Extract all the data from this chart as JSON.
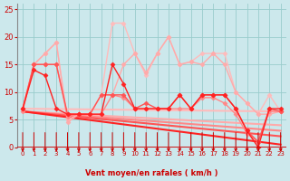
{
  "xlim": [
    -0.5,
    23.5
  ],
  "ylim": [
    0,
    26
  ],
  "yticks": [
    0,
    5,
    10,
    15,
    20,
    25
  ],
  "xticks": [
    0,
    1,
    2,
    3,
    4,
    5,
    6,
    7,
    8,
    9,
    10,
    11,
    12,
    13,
    14,
    15,
    16,
    17,
    18,
    19,
    20,
    21,
    22,
    23
  ],
  "xlabel": "Vent moyen/en rafales ( km/h )",
  "bg_color": "#cce8ec",
  "grid_color": "#99cccc",
  "series": [
    {
      "x": [
        0,
        1,
        2,
        3,
        4,
        5,
        6,
        7,
        8,
        9,
        10,
        11,
        12,
        13,
        14,
        15,
        16,
        17,
        18,
        19,
        20,
        21,
        22,
        23
      ],
      "y": [
        7,
        15,
        17,
        19,
        5,
        6,
        6,
        9.5,
        22.5,
        22.5,
        17,
        13,
        17,
        20,
        15,
        15.5,
        17,
        17,
        17,
        10,
        8,
        6,
        9.5,
        6.5
      ],
      "color": "#ffbbbb",
      "lw": 1.0,
      "marker": "D",
      "ms": 2.5
    },
    {
      "x": [
        0,
        1,
        2,
        3,
        4,
        5,
        6,
        7,
        8,
        9,
        10,
        11,
        12,
        13,
        14,
        15,
        16,
        17,
        18,
        19,
        20,
        21,
        22,
        23
      ],
      "y": [
        7,
        15,
        17,
        19,
        4.5,
        6,
        6,
        9.5,
        9.5,
        15,
        17,
        13.5,
        17,
        20,
        15,
        15.5,
        15,
        17,
        15,
        10,
        8,
        6,
        6,
        6.5
      ],
      "color": "#ffaaaa",
      "lw": 1.0,
      "marker": "D",
      "ms": 2.5
    },
    {
      "x": [
        0,
        1,
        2,
        3,
        4,
        5,
        6,
        7,
        8,
        9,
        10,
        11,
        12,
        13,
        14,
        15,
        16,
        17,
        18,
        19,
        20,
        21,
        22,
        23
      ],
      "y": [
        6.5,
        15,
        15,
        15,
        5.5,
        6,
        6,
        6,
        9.5,
        9,
        7,
        7,
        7,
        7,
        7,
        7,
        9,
        9,
        8,
        6,
        2.5,
        1,
        6.5,
        6.5
      ],
      "color": "#ff8888",
      "lw": 1.0,
      "marker": "D",
      "ms": 2.5
    },
    {
      "x": [
        0,
        1,
        2,
        3,
        4,
        5,
        6,
        7,
        8,
        9,
        10,
        11,
        12,
        13,
        14,
        15,
        16,
        17,
        18,
        19,
        20,
        21,
        22,
        23
      ],
      "y": [
        7,
        15,
        15,
        15,
        6,
        6,
        6,
        9.5,
        9.5,
        9.5,
        7,
        8,
        7,
        7,
        9.5,
        7,
        9.5,
        9.5,
        9.5,
        7,
        3,
        1,
        7,
        6.5
      ],
      "color": "#ff5555",
      "lw": 1.0,
      "marker": "D",
      "ms": 2.5
    },
    {
      "x": [
        0,
        1,
        2,
        3,
        4,
        5,
        6,
        7,
        8,
        9,
        10,
        11,
        12,
        13,
        14,
        15,
        16,
        17,
        18,
        19,
        20,
        21,
        22,
        23
      ],
      "y": [
        7,
        14,
        13,
        7,
        6,
        6,
        6,
        6,
        15,
        11.5,
        7,
        7,
        7,
        7,
        9.5,
        7,
        9.5,
        9.5,
        9.5,
        7,
        3,
        0,
        7,
        7
      ],
      "color": "#ff2222",
      "lw": 1.0,
      "marker": "D",
      "ms": 2.5
    },
    {
      "x": [
        0,
        23
      ],
      "y": [
        7,
        6.5
      ],
      "color": "#ffbbbb",
      "lw": 1.5,
      "marker": null,
      "ms": 0
    },
    {
      "x": [
        0,
        23
      ],
      "y": [
        6.5,
        4.0
      ],
      "color": "#ffaaaa",
      "lw": 1.5,
      "marker": null,
      "ms": 0
    },
    {
      "x": [
        0,
        23
      ],
      "y": [
        6.5,
        3.0
      ],
      "color": "#ff8888",
      "lw": 1.5,
      "marker": null,
      "ms": 0
    },
    {
      "x": [
        0,
        23
      ],
      "y": [
        6.5,
        2.0
      ],
      "color": "#ff5555",
      "lw": 1.5,
      "marker": null,
      "ms": 0
    },
    {
      "x": [
        0,
        23
      ],
      "y": [
        6.5,
        0.5
      ],
      "color": "#ff2222",
      "lw": 1.5,
      "marker": null,
      "ms": 0
    }
  ],
  "arrow_color": "#cc0000",
  "title_color": "#cc0000"
}
